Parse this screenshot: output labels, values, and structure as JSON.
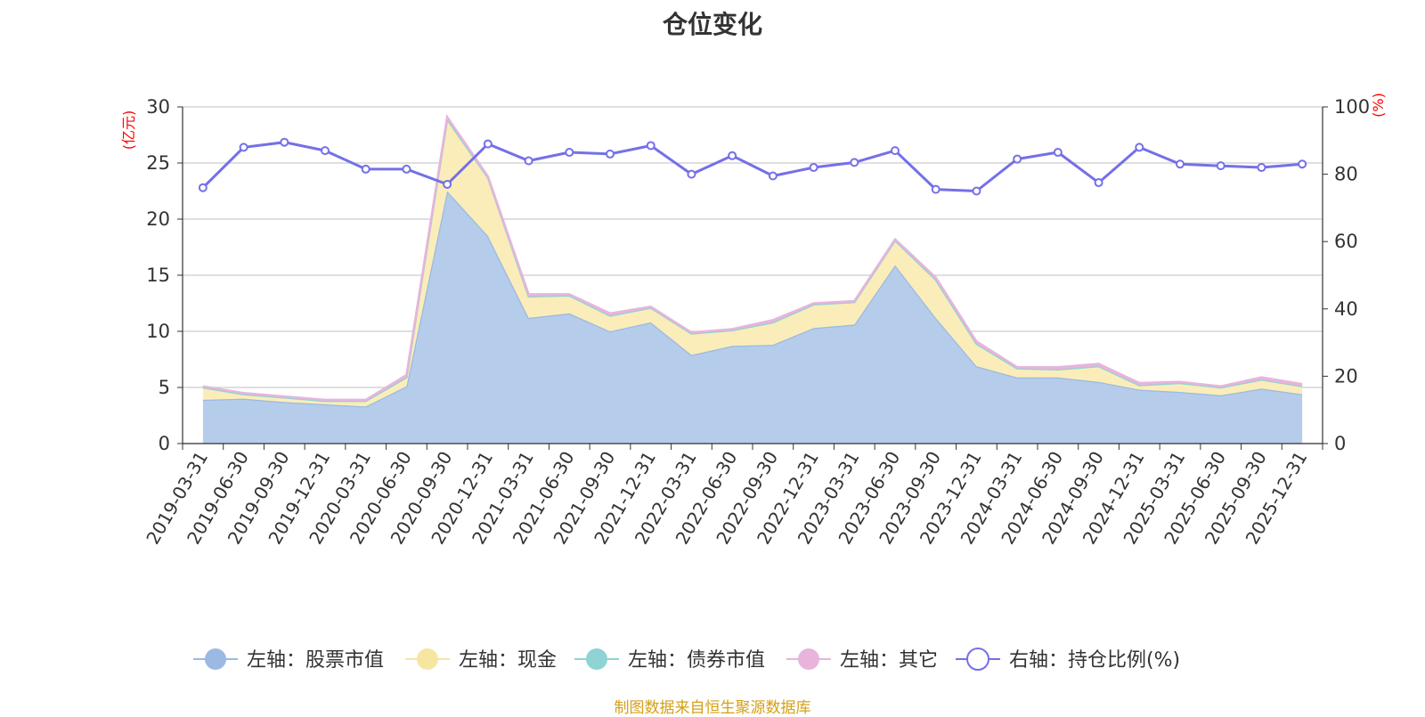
{
  "title": "仓位变化",
  "footer": "制图数据来自恒生聚源数据库",
  "chart_data": {
    "type": "area",
    "title": "仓位变化",
    "left_axis": {
      "unit_label": "(亿元)",
      "min": 0,
      "max": 30,
      "ticks": [
        0,
        5,
        10,
        15,
        20,
        25,
        30
      ]
    },
    "right_axis": {
      "unit_label": "(%)",
      "min": 0,
      "max": 100,
      "ticks": [
        0,
        20,
        40,
        60,
        80,
        100
      ]
    },
    "grid": true,
    "legend_position": "bottom",
    "categories": [
      "2019-03-31",
      "2019-06-30",
      "2019-09-30",
      "2019-12-31",
      "2020-03-31",
      "2020-06-30",
      "2020-09-30",
      "2020-12-31",
      "2021-03-31",
      "2021-06-30",
      "2021-09-30",
      "2021-12-31",
      "2022-03-31",
      "2022-06-30",
      "2022-09-30",
      "2022-12-31",
      "2023-03-31",
      "2023-06-30",
      "2023-09-30",
      "2023-12-31",
      "2024-03-31",
      "2024-06-30",
      "2024-09-30",
      "2024-12-31",
      "2025-03-31",
      "2025-06-30",
      "2025-09-30",
      "2025-12-31"
    ],
    "series": [
      {
        "name": "左轴：股票市值",
        "axis": "left",
        "type": "area",
        "color": "#9bb9e3",
        "fill": "#b6cceb",
        "values": [
          3.9,
          4.0,
          3.7,
          3.5,
          3.3,
          5.1,
          22.5,
          18.5,
          11.2,
          11.6,
          10.0,
          10.8,
          7.9,
          8.7,
          8.8,
          10.3,
          10.6,
          15.9,
          11.2,
          6.9,
          5.9,
          5.9,
          5.5,
          4.8,
          4.6,
          4.3,
          4.9,
          4.4
        ]
      },
      {
        "name": "左轴：现金",
        "axis": "left",
        "type": "area",
        "color": "#f7e6a0",
        "fill": "#faedb9",
        "values": [
          1.1,
          0.4,
          0.4,
          0.3,
          0.5,
          0.8,
          6.4,
          5.2,
          1.9,
          1.6,
          1.4,
          1.3,
          1.9,
          1.4,
          2.0,
          2.1,
          2.0,
          2.2,
          3.4,
          2.0,
          0.8,
          0.7,
          1.4,
          0.4,
          0.8,
          0.7,
          0.8,
          0.7
        ]
      },
      {
        "name": "左轴：债券市值",
        "axis": "left",
        "type": "area",
        "color": "#8fd3d4",
        "fill": "#8fd3d4",
        "values": [
          0,
          0,
          0,
          0,
          0,
          0,
          0,
          0,
          0,
          0,
          0,
          0,
          0,
          0,
          0,
          0,
          0,
          0,
          0,
          0,
          0,
          0,
          0,
          0,
          0,
          0,
          0,
          0
        ]
      },
      {
        "name": "左轴：其它",
        "axis": "left",
        "type": "area",
        "color": "#e8b4dc",
        "fill": "#e8b4dc",
        "values": [
          0.1,
          0.1,
          0.1,
          0.1,
          0.1,
          0.2,
          0.2,
          0.1,
          0.2,
          0.1,
          0.2,
          0.1,
          0.1,
          0.1,
          0.2,
          0.1,
          0.1,
          0.1,
          0.2,
          0.2,
          0.1,
          0.2,
          0.2,
          0.2,
          0.1,
          0.1,
          0.2,
          0.2
        ]
      },
      {
        "name": "右轴：持仓比例(%)",
        "axis": "right",
        "type": "line",
        "color": "#7470e8",
        "values": [
          76.0,
          88.0,
          89.5,
          87.0,
          81.5,
          81.5,
          77.0,
          89.0,
          84.0,
          86.5,
          86.0,
          88.5,
          80.0,
          85.5,
          79.5,
          82.0,
          83.5,
          87.0,
          75.5,
          75.0,
          84.5,
          86.5,
          77.5,
          88.0,
          83.0,
          82.5,
          82.0,
          83.0
        ]
      }
    ]
  }
}
